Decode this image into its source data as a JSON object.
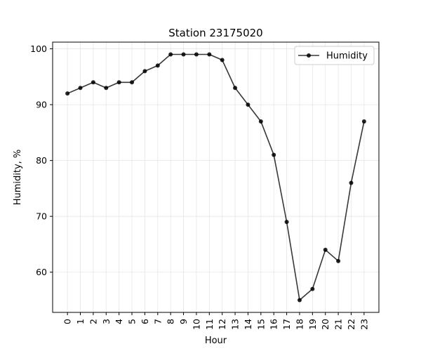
{
  "chart_data": {
    "type": "line",
    "title": "Station 23175020",
    "xlabel": "Hour",
    "ylabel": "Humidity, %",
    "x": [
      0,
      1,
      2,
      3,
      4,
      5,
      6,
      7,
      8,
      9,
      10,
      11,
      12,
      13,
      14,
      15,
      16,
      17,
      18,
      19,
      20,
      21,
      22,
      23
    ],
    "x_tick_labels": [
      "0",
      "1",
      "2",
      "3",
      "4",
      "5",
      "6",
      "7",
      "8",
      "9",
      "10",
      "11",
      "12",
      "13",
      "14",
      "15",
      "16",
      "17",
      "18",
      "19",
      "20",
      "21",
      "22",
      "23"
    ],
    "y_ticks": [
      60,
      70,
      80,
      90,
      100
    ],
    "y_tick_labels": [
      "60",
      "70",
      "80",
      "90",
      "100"
    ],
    "xlim": [
      -1.15,
      24.15
    ],
    "ylim": [
      52.8,
      101.2
    ],
    "grid": true,
    "legend_position": "top-right",
    "series": [
      {
        "name": "Humidity",
        "color": "#000000",
        "values": [
          92,
          93,
          94,
          93,
          94,
          94,
          96,
          97,
          99,
          99,
          99,
          99,
          98,
          93,
          90,
          87,
          81,
          69,
          55,
          57,
          64,
          62,
          76,
          87
        ]
      }
    ]
  }
}
